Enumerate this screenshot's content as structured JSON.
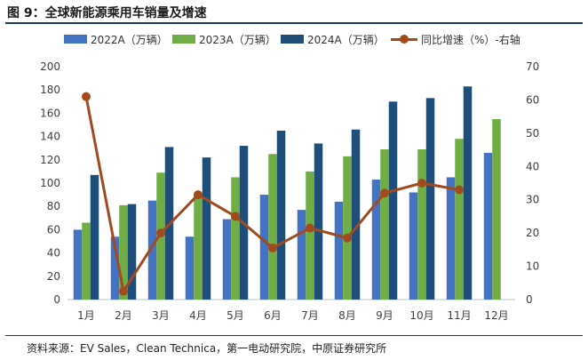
{
  "figure": {
    "title": "图 9：全球新能源乘用车销量及增速",
    "source": "资料来源：EV Sales，Clean Technica，第一电动研究院，中原证券研究所"
  },
  "chart_data": {
    "type": "bar",
    "categories": [
      "1月",
      "2月",
      "3月",
      "4月",
      "5月",
      "6月",
      "7月",
      "8月",
      "9月",
      "10月",
      "11月",
      "12月"
    ],
    "series": [
      {
        "name": "2022A（万辆）",
        "kind": "bar",
        "color": "#4472c4",
        "values": [
          60,
          54,
          85,
          54,
          69,
          90,
          77,
          84,
          103,
          92,
          105,
          126
        ]
      },
      {
        "name": "2023A（万辆）",
        "kind": "bar",
        "color": "#70ad47",
        "values": [
          66,
          81,
          109,
          92,
          105,
          125,
          110,
          123,
          129,
          129,
          138,
          155
        ]
      },
      {
        "name": "2024A（万辆）",
        "kind": "bar",
        "color": "#1f4e79",
        "values": [
          107,
          82,
          131,
          122,
          132,
          145,
          134,
          146,
          170,
          173,
          183,
          null
        ]
      },
      {
        "name": "同比增速（%）-右轴",
        "kind": "line",
        "axis": "right",
        "color": "#a14a1e",
        "values": [
          61,
          2.5,
          20,
          31.5,
          25,
          15.5,
          21.5,
          18.5,
          32,
          35,
          33,
          null
        ]
      }
    ],
    "y_left": {
      "min": 0,
      "max": 200,
      "step": 20
    },
    "y_right": {
      "min": 0,
      "max": 70,
      "step": 10
    },
    "legend_position": "top",
    "grid": false
  }
}
